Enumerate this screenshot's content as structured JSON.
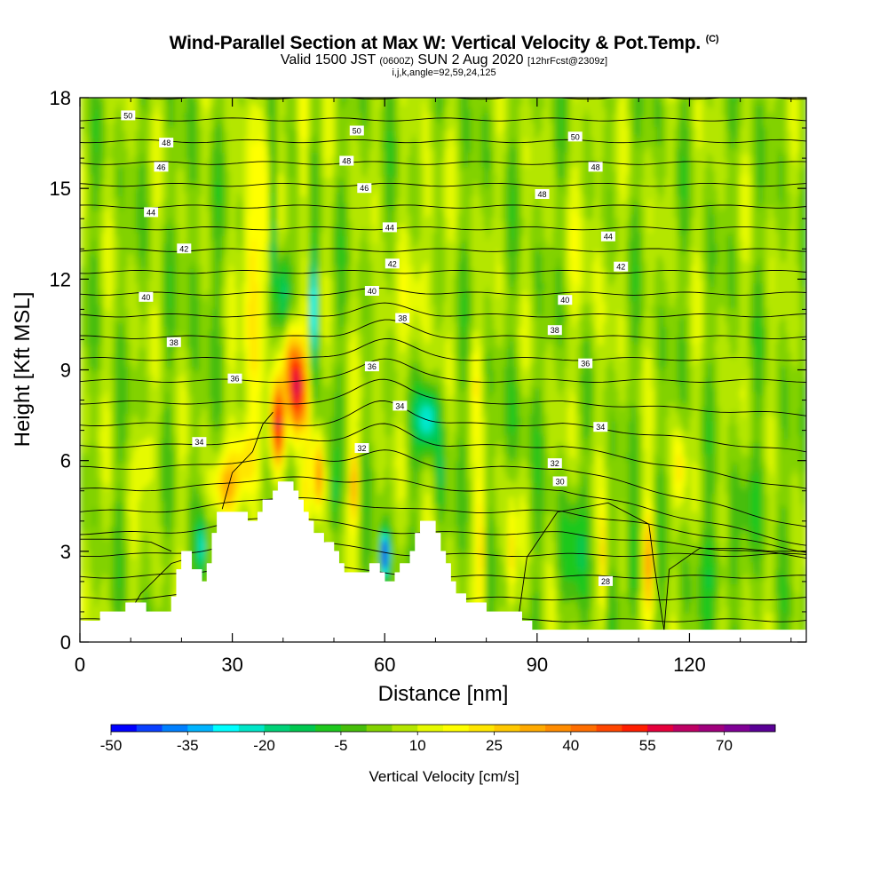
{
  "chart_data": {
    "type": "heatmap",
    "title": "Wind-Parallel Section at Max W: Vertical Velocity & Pot.Temp.",
    "title_mark": "(C)",
    "subtitle_main": "Valid 1500 JST",
    "subtitle_utc": "(0600Z)",
    "subtitle_date": "SUN 2 Aug 2020",
    "subtitle_fcst": "[12hrFcst@2309z]",
    "subtitle2": "i,j,k,angle=92,59,24,125",
    "xlabel": "Distance [nm]",
    "ylabel": "Height [Kft MSL]",
    "xlim": [
      0,
      143
    ],
    "ylim": [
      0,
      18
    ],
    "x_ticks": [
      "0",
      "30",
      "60",
      "90",
      "120"
    ],
    "x_tick_values": [
      0,
      30,
      60,
      90,
      120
    ],
    "y_ticks": [
      "0",
      "3",
      "6",
      "9",
      "12",
      "15",
      "18"
    ],
    "y_tick_values": [
      0,
      3,
      6,
      9,
      12,
      15,
      18
    ],
    "colorbar": {
      "title": "Vertical Velocity [cm/s]",
      "min": -50,
      "max": 80,
      "step": 5,
      "labels": [
        "-50",
        "-35",
        "-20",
        "-5",
        "10",
        "25",
        "40",
        "55",
        "70"
      ],
      "colors": [
        "#0000ff",
        "#0a40ff",
        "#0080ff",
        "#00b4ff",
        "#00ffff",
        "#00e6c8",
        "#00d278",
        "#00c850",
        "#1ec81e",
        "#46be0a",
        "#82d200",
        "#b4e600",
        "#e6fa00",
        "#ffff00",
        "#ffe600",
        "#ffc800",
        "#ffaa00",
        "#ff8c00",
        "#ff6e00",
        "#ff4600",
        "#ff1e00",
        "#e6003c",
        "#be0064",
        "#a0007d",
        "#800096",
        "#5a0096"
      ]
    },
    "contour_labels": [
      {
        "text": "50",
        "x": 9.5,
        "y": 17.4
      },
      {
        "text": "48",
        "x": 17,
        "y": 16.5
      },
      {
        "text": "46",
        "x": 16,
        "y": 15.7
      },
      {
        "text": "44",
        "x": 14,
        "y": 14.2
      },
      {
        "text": "42",
        "x": 20.5,
        "y": 13.0
      },
      {
        "text": "40",
        "x": 13,
        "y": 11.4
      },
      {
        "text": "38",
        "x": 18.5,
        "y": 9.9
      },
      {
        "text": "36",
        "x": 30.5,
        "y": 8.7
      },
      {
        "text": "34",
        "x": 23.5,
        "y": 6.6
      },
      {
        "text": "50",
        "x": 54.5,
        "y": 16.9
      },
      {
        "text": "48",
        "x": 52.5,
        "y": 15.9
      },
      {
        "text": "46",
        "x": 56,
        "y": 15.0
      },
      {
        "text": "44",
        "x": 61,
        "y": 13.7
      },
      {
        "text": "42",
        "x": 61.5,
        "y": 12.5
      },
      {
        "text": "40",
        "x": 57.5,
        "y": 11.6
      },
      {
        "text": "38",
        "x": 63.5,
        "y": 10.7
      },
      {
        "text": "36",
        "x": 57.5,
        "y": 9.1
      },
      {
        "text": "34",
        "x": 63,
        "y": 7.8
      },
      {
        "text": "32",
        "x": 55.5,
        "y": 6.4
      },
      {
        "text": "50",
        "x": 97.5,
        "y": 16.7
      },
      {
        "text": "48",
        "x": 101.5,
        "y": 15.7
      },
      {
        "text": "48",
        "x": 91,
        "y": 14.8
      },
      {
        "text": "44",
        "x": 104,
        "y": 13.4
      },
      {
        "text": "42",
        "x": 106.5,
        "y": 12.4
      },
      {
        "text": "40",
        "x": 95.5,
        "y": 11.3
      },
      {
        "text": "38",
        "x": 93.5,
        "y": 10.3
      },
      {
        "text": "36",
        "x": 99.5,
        "y": 9.2
      },
      {
        "text": "34",
        "x": 102.5,
        "y": 7.1
      },
      {
        "text": "32",
        "x": 93.5,
        "y": 5.9
      },
      {
        "text": "30",
        "x": 94.5,
        "y": 5.3
      },
      {
        "text": "28",
        "x": 103.5,
        "y": 2.0
      }
    ],
    "terrain": [
      [
        0,
        0.7
      ],
      [
        4,
        0.7
      ],
      [
        4,
        1.0
      ],
      [
        9,
        1.0
      ],
      [
        9,
        1.3
      ],
      [
        13,
        1.3
      ],
      [
        13,
        1.0
      ],
      [
        18,
        1.0
      ],
      [
        18,
        1.5
      ],
      [
        19,
        1.5
      ],
      [
        19,
        2.4
      ],
      [
        20,
        2.4
      ],
      [
        20,
        3.0
      ],
      [
        22,
        3.0
      ],
      [
        22,
        2.4
      ],
      [
        24,
        2.4
      ],
      [
        24,
        2.0
      ],
      [
        25,
        2.0
      ],
      [
        25,
        2.6
      ],
      [
        26,
        2.6
      ],
      [
        26,
        3.6
      ],
      [
        27,
        3.6
      ],
      [
        27,
        4.3
      ],
      [
        33,
        4.3
      ],
      [
        33,
        4.0
      ],
      [
        35,
        4.0
      ],
      [
        35,
        4.3
      ],
      [
        36,
        4.3
      ],
      [
        36,
        4.7
      ],
      [
        38,
        4.7
      ],
      [
        38,
        5.0
      ],
      [
        39,
        5.0
      ],
      [
        39,
        5.3
      ],
      [
        42,
        5.3
      ],
      [
        42,
        5.0
      ],
      [
        43,
        5.0
      ],
      [
        43,
        4.7
      ],
      [
        44,
        4.7
      ],
      [
        44,
        4.3
      ],
      [
        45,
        4.3
      ],
      [
        45,
        4.0
      ],
      [
        46,
        4.0
      ],
      [
        46,
        3.6
      ],
      [
        48,
        3.6
      ],
      [
        48,
        3.3
      ],
      [
        50,
        3.3
      ],
      [
        50,
        3.0
      ],
      [
        51,
        3.0
      ],
      [
        51,
        2.6
      ],
      [
        52,
        2.6
      ],
      [
        52,
        2.3
      ],
      [
        57,
        2.3
      ],
      [
        57,
        2.6
      ],
      [
        59,
        2.6
      ],
      [
        59,
        2.3
      ],
      [
        60,
        2.3
      ],
      [
        60,
        2.0
      ],
      [
        62,
        2.0
      ],
      [
        62,
        2.3
      ],
      [
        63,
        2.3
      ],
      [
        63,
        2.6
      ],
      [
        65,
        2.6
      ],
      [
        65,
        3.0
      ],
      [
        66,
        3.0
      ],
      [
        66,
        3.6
      ],
      [
        67,
        3.6
      ],
      [
        67,
        4.0
      ],
      [
        70,
        4.0
      ],
      [
        70,
        3.6
      ],
      [
        71,
        3.6
      ],
      [
        71,
        3.0
      ],
      [
        72,
        3.0
      ],
      [
        72,
        2.6
      ],
      [
        73,
        2.6
      ],
      [
        73,
        2.0
      ],
      [
        74,
        2.0
      ],
      [
        74,
        1.6
      ],
      [
        76,
        1.6
      ],
      [
        76,
        1.3
      ],
      [
        80,
        1.3
      ],
      [
        80,
        1.0
      ],
      [
        87,
        1.0
      ],
      [
        87,
        0.7
      ],
      [
        89,
        0.7
      ],
      [
        89,
        0.4
      ],
      [
        143,
        0.4
      ]
    ]
  }
}
